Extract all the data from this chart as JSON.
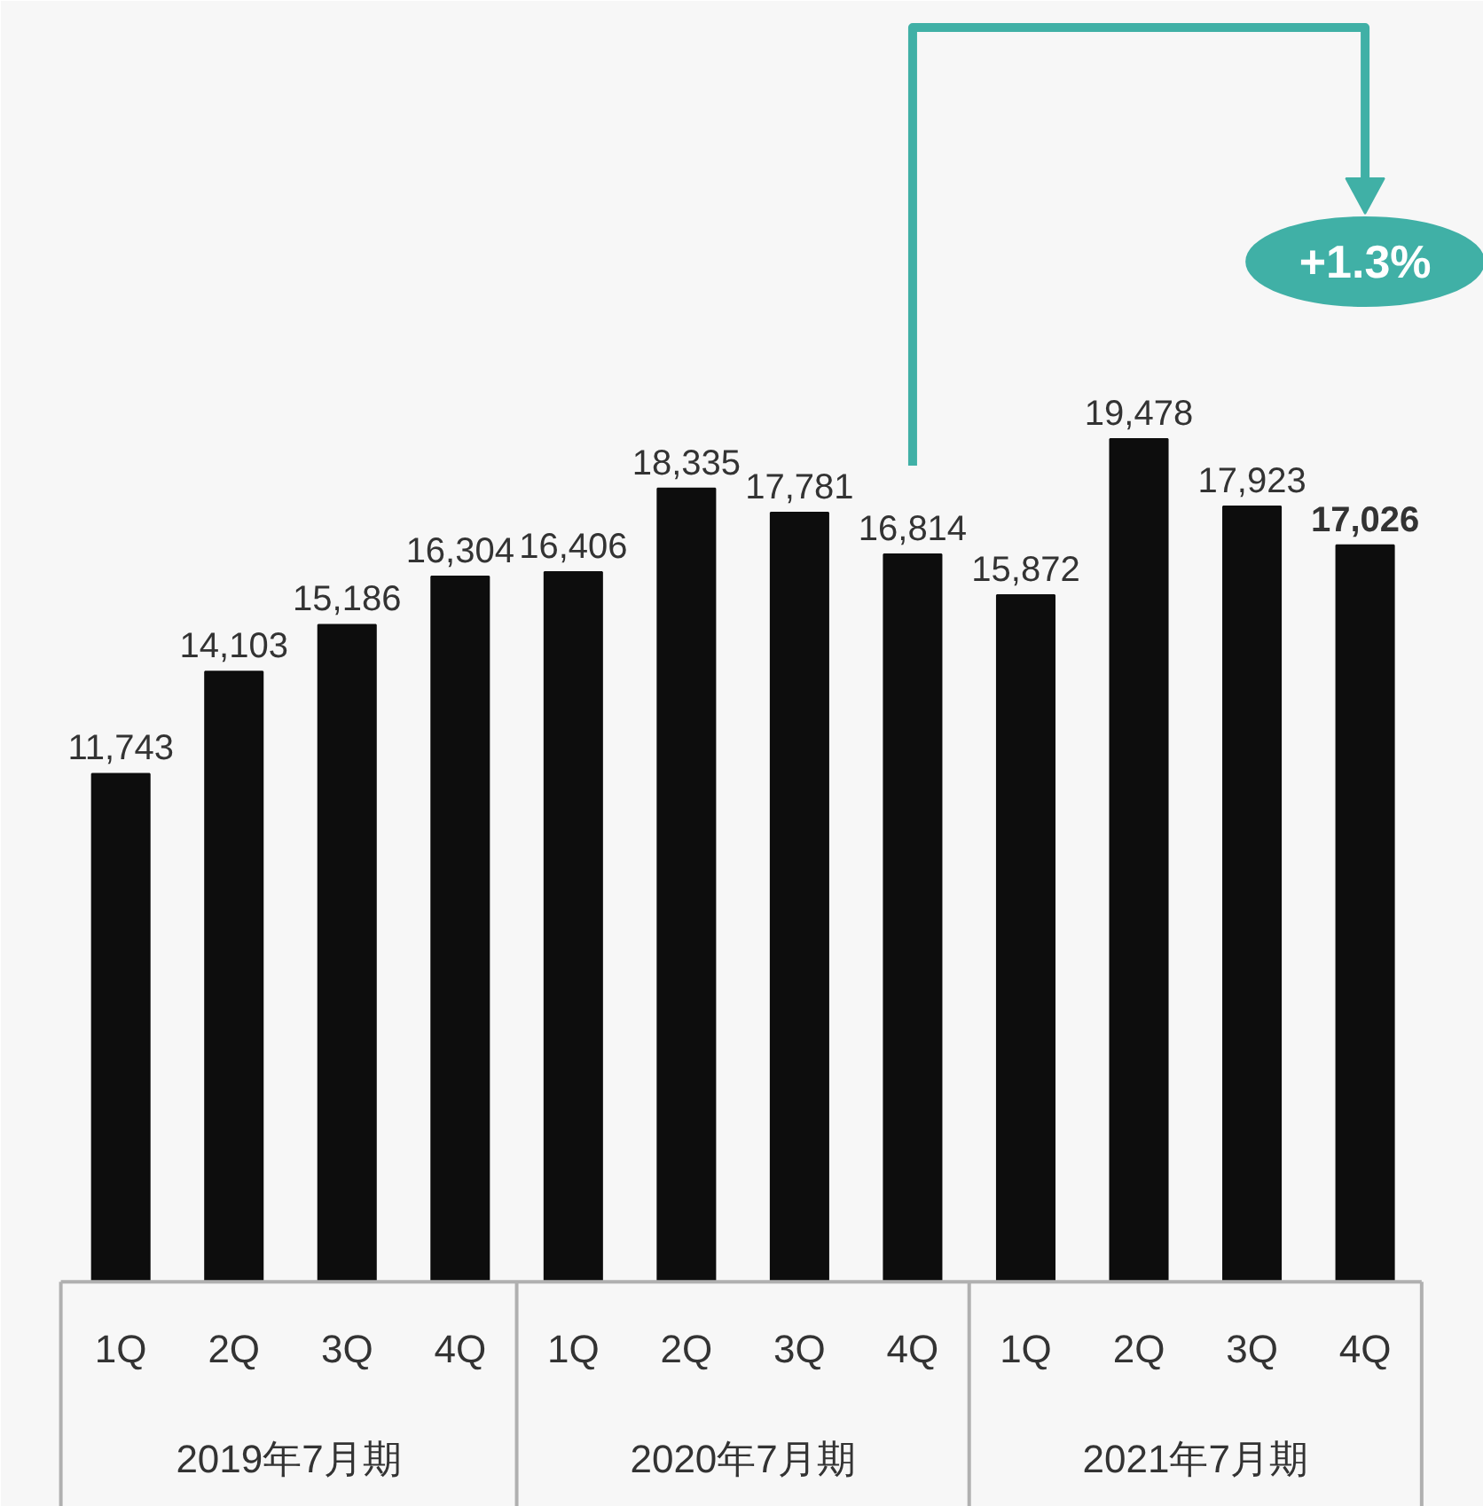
{
  "chart_data": {
    "type": "bar",
    "categories": [
      "1Q",
      "2Q",
      "3Q",
      "4Q",
      "1Q",
      "2Q",
      "3Q",
      "4Q",
      "1Q",
      "2Q",
      "3Q",
      "4Q"
    ],
    "values": [
      11743,
      14103,
      15186,
      16304,
      16406,
      18335,
      17781,
      16814,
      15872,
      19478,
      17923,
      17026
    ],
    "color": "#0d0d0d",
    "value_labels": [
      "11,743",
      "14,103",
      "15,186",
      "16,304",
      "16,406",
      "18,335",
      "17,781",
      "16,814",
      "15,872",
      "19,478",
      "17,923",
      "17,026"
    ],
    "annotations": [
      "2019年7月期",
      "2020年7月期",
      "2021年7月期",
      "+1.3%"
    ],
    "grid": false
  }
}
